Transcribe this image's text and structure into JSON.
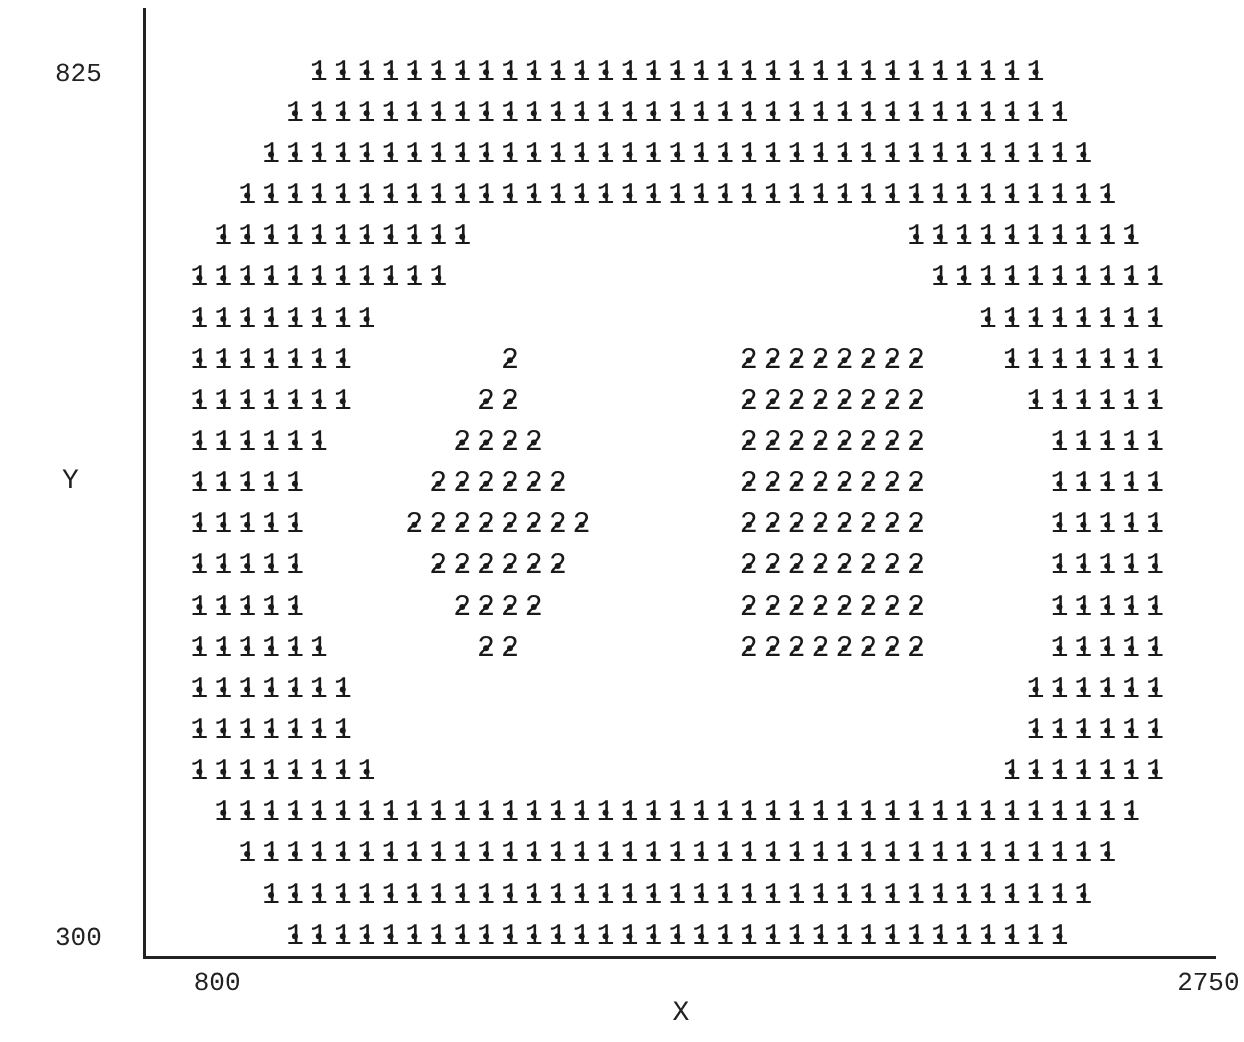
{
  "chart_data": {
    "type": "scatter",
    "xlabel": "X",
    "ylabel": "Y",
    "xlim": [
      660,
      2765
    ],
    "ylim": [
      288,
      864
    ],
    "xticks": [
      800,
      2750
    ],
    "yticks": [
      300,
      825
    ],
    "legend": false,
    "series": [
      {
        "name": "1",
        "color": "#1a1a1a",
        "x": [
          1000,
          1047,
          1094,
          1141,
          1188,
          1235,
          1282,
          1329,
          1376,
          1423,
          1470,
          1517,
          1564,
          1611,
          1658,
          1705,
          1752,
          1799,
          1846,
          1893,
          1940,
          1987,
          2034,
          2081,
          2128,
          2175,
          2222,
          2269,
          2316,
          2363,
          2410,
          953,
          1000,
          1047,
          1094,
          1141,
          1188,
          1235,
          1282,
          1329,
          1376,
          1423,
          1470,
          1517,
          1564,
          1611,
          1658,
          1705,
          1752,
          1799,
          1846,
          1893,
          1940,
          1987,
          2034,
          2081,
          2128,
          2175,
          2222,
          2269,
          2316,
          2363,
          2410,
          2457,
          906,
          953,
          1000,
          1047,
          1094,
          1141,
          1188,
          1235,
          1282,
          1329,
          1376,
          1423,
          1470,
          1517,
          1564,
          1611,
          1658,
          1705,
          1752,
          1799,
          1846,
          1893,
          1940,
          1987,
          2034,
          2081,
          2128,
          2175,
          2222,
          2269,
          2316,
          2363,
          2410,
          2457,
          2504,
          859,
          906,
          953,
          1000,
          1047,
          1094,
          1141,
          1188,
          1235,
          1282,
          1329,
          1376,
          1423,
          1470,
          1517,
          1564,
          1611,
          1658,
          1705,
          1752,
          1799,
          1846,
          1893,
          1940,
          1987,
          2034,
          2081,
          2128,
          2175,
          2222,
          2269,
          2316,
          2363,
          2410,
          2457,
          2504,
          2551,
          812,
          859,
          906,
          953,
          1000,
          1047,
          1094,
          1141,
          1188,
          1235,
          1282,
          2175,
          2222,
          2269,
          2316,
          2363,
          2410,
          2457,
          2504,
          2551,
          2598,
          765,
          812,
          859,
          906,
          953,
          1000,
          1047,
          1094,
          1141,
          1188,
          1235,
          2222,
          2269,
          2316,
          2363,
          2410,
          2457,
          2504,
          2551,
          2598,
          2645,
          765,
          812,
          859,
          906,
          953,
          1000,
          1047,
          1094,
          2316,
          2363,
          2410,
          2457,
          2504,
          2551,
          2598,
          2645,
          765,
          812,
          859,
          906,
          953,
          1000,
          1047,
          2363,
          2410,
          2457,
          2504,
          2551,
          2598,
          2645,
          765,
          812,
          859,
          906,
          953,
          1000,
          1047,
          2410,
          2457,
          2504,
          2551,
          2598,
          2645,
          765,
          812,
          859,
          906,
          953,
          1000,
          2457,
          2504,
          2551,
          2598,
          2645,
          765,
          812,
          859,
          906,
          953,
          2457,
          2504,
          2551,
          2598,
          2645,
          765,
          812,
          859,
          906,
          953,
          2457,
          2504,
          2551,
          2598,
          2645,
          765,
          812,
          859,
          906,
          953,
          2457,
          2504,
          2551,
          2598,
          2645,
          765,
          812,
          859,
          906,
          953,
          2457,
          2504,
          2551,
          2598,
          2645,
          765,
          812,
          859,
          906,
          953,
          1000,
          2457,
          2504,
          2551,
          2598,
          2645,
          765,
          812,
          859,
          906,
          953,
          1000,
          1047,
          2410,
          2457,
          2504,
          2551,
          2598,
          2645,
          765,
          812,
          859,
          906,
          953,
          1000,
          1047,
          2410,
          2457,
          2504,
          2551,
          2598,
          2645,
          765,
          812,
          859,
          906,
          953,
          1000,
          1047,
          1094,
          2363,
          2410,
          2457,
          2504,
          2551,
          2598,
          2645,
          812,
          859,
          906,
          953,
          1000,
          1047,
          1094,
          1141,
          1188,
          1235,
          1282,
          1329,
          1376,
          1423,
          1470,
          1517,
          1564,
          1611,
          1658,
          1705,
          1752,
          1799,
          1846,
          1893,
          1940,
          1987,
          2034,
          2081,
          2128,
          2175,
          2222,
          2269,
          2316,
          2363,
          2410,
          2457,
          2504,
          2551,
          2598,
          859,
          906,
          953,
          1000,
          1047,
          1094,
          1141,
          1188,
          1235,
          1282,
          1329,
          1376,
          1423,
          1470,
          1517,
          1564,
          1611,
          1658,
          1705,
          1752,
          1799,
          1846,
          1893,
          1940,
          1987,
          2034,
          2081,
          2128,
          2175,
          2222,
          2269,
          2316,
          2363,
          2410,
          2457,
          2504,
          2551,
          906,
          953,
          1000,
          1047,
          1094,
          1141,
          1188,
          1235,
          1282,
          1329,
          1376,
          1423,
          1470,
          1517,
          1564,
          1611,
          1658,
          1705,
          1752,
          1799,
          1846,
          1893,
          1940,
          1987,
          2034,
          2081,
          2128,
          2175,
          2222,
          2269,
          2316,
          2363,
          2410,
          2457,
          2504,
          953,
          1000,
          1047,
          1094,
          1141,
          1188,
          1235,
          1282,
          1329,
          1376,
          1423,
          1470,
          1517,
          1564,
          1611,
          1658,
          1705,
          1752,
          1799,
          1846,
          1893,
          1940,
          1987,
          2034,
          2081,
          2128,
          2175,
          2222,
          2269,
          2316,
          2363,
          2410,
          2457
        ],
        "values": [
          825,
          825,
          825,
          825,
          825,
          825,
          825,
          825,
          825,
          825,
          825,
          825,
          825,
          825,
          825,
          825,
          825,
          825,
          825,
          825,
          825,
          825,
          825,
          825,
          825,
          825,
          825,
          825,
          825,
          825,
          825,
          800,
          800,
          800,
          800,
          800,
          800,
          800,
          800,
          800,
          800,
          800,
          800,
          800,
          800,
          800,
          800,
          800,
          800,
          800,
          800,
          800,
          800,
          800,
          800,
          800,
          800,
          800,
          800,
          800,
          800,
          800,
          800,
          800,
          775,
          775,
          775,
          775,
          775,
          775,
          775,
          775,
          775,
          775,
          775,
          775,
          775,
          775,
          775,
          775,
          775,
          775,
          775,
          775,
          775,
          775,
          775,
          775,
          775,
          775,
          775,
          775,
          775,
          775,
          775,
          775,
          775,
          775,
          775,
          750,
          750,
          750,
          750,
          750,
          750,
          750,
          750,
          750,
          750,
          750,
          750,
          750,
          750,
          750,
          750,
          750,
          750,
          750,
          750,
          750,
          750,
          750,
          750,
          750,
          750,
          750,
          750,
          750,
          750,
          750,
          750,
          750,
          750,
          750,
          750,
          750,
          725,
          725,
          725,
          725,
          725,
          725,
          725,
          725,
          725,
          725,
          725,
          725,
          725,
          725,
          725,
          725,
          725,
          725,
          725,
          725,
          725,
          700,
          700,
          700,
          700,
          700,
          700,
          700,
          700,
          700,
          700,
          700,
          700,
          700,
          700,
          700,
          700,
          700,
          700,
          700,
          700,
          700,
          675,
          675,
          675,
          675,
          675,
          675,
          675,
          675,
          675,
          675,
          675,
          675,
          675,
          675,
          675,
          675,
          650,
          650,
          650,
          650,
          650,
          650,
          650,
          650,
          650,
          650,
          650,
          650,
          650,
          650,
          625,
          625,
          625,
          625,
          625,
          625,
          625,
          625,
          625,
          625,
          625,
          625,
          625,
          600,
          600,
          600,
          600,
          600,
          600,
          600,
          600,
          600,
          600,
          600,
          575,
          575,
          575,
          575,
          575,
          575,
          575,
          575,
          575,
          575,
          550,
          550,
          550,
          550,
          550,
          550,
          550,
          550,
          550,
          550,
          525,
          525,
          525,
          525,
          525,
          525,
          525,
          525,
          525,
          525,
          500,
          500,
          500,
          500,
          500,
          500,
          500,
          500,
          500,
          500,
          475,
          475,
          475,
          475,
          475,
          475,
          475,
          475,
          475,
          475,
          475,
          450,
          450,
          450,
          450,
          450,
          450,
          450,
          450,
          450,
          450,
          450,
          450,
          450,
          425,
          425,
          425,
          425,
          425,
          425,
          425,
          425,
          425,
          425,
          425,
          425,
          425,
          400,
          400,
          400,
          400,
          400,
          400,
          400,
          400,
          400,
          400,
          400,
          400,
          400,
          400,
          400,
          375,
          375,
          375,
          375,
          375,
          375,
          375,
          375,
          375,
          375,
          375,
          375,
          375,
          375,
          375,
          375,
          375,
          375,
          375,
          375,
          375,
          375,
          375,
          375,
          375,
          375,
          375,
          375,
          375,
          375,
          375,
          375,
          375,
          375,
          375,
          375,
          375,
          375,
          375,
          350,
          350,
          350,
          350,
          350,
          350,
          350,
          350,
          350,
          350,
          350,
          350,
          350,
          350,
          350,
          350,
          350,
          350,
          350,
          350,
          350,
          350,
          350,
          350,
          350,
          350,
          350,
          350,
          350,
          350,
          350,
          350,
          350,
          350,
          350,
          350,
          350,
          325,
          325,
          325,
          325,
          325,
          325,
          325,
          325,
          325,
          325,
          325,
          325,
          325,
          325,
          325,
          325,
          325,
          325,
          325,
          325,
          325,
          325,
          325,
          325,
          325,
          325,
          325,
          325,
          325,
          325,
          325,
          325,
          325,
          325,
          325,
          300,
          300,
          300,
          300,
          300,
          300,
          300,
          300,
          300,
          300,
          300,
          300,
          300,
          300,
          300,
          300,
          300,
          300,
          300,
          300,
          300,
          300,
          300,
          300,
          300,
          300,
          300,
          300,
          300,
          300,
          300,
          300,
          300
        ]
      },
      {
        "name": "2",
        "color": "#1a1a1a",
        "x": [
          1376,
          1846,
          1893,
          1940,
          1987,
          2034,
          2081,
          2128,
          2175,
          1329,
          1376,
          1846,
          1893,
          1940,
          1987,
          2034,
          2081,
          2128,
          2175,
          1282,
          1329,
          1376,
          1423,
          1846,
          1893,
          1940,
          1987,
          2034,
          2081,
          2128,
          2175,
          1235,
          1282,
          1329,
          1376,
          1423,
          1470,
          1846,
          1893,
          1940,
          1987,
          2034,
          2081,
          2128,
          2175,
          1188,
          1235,
          1282,
          1329,
          1376,
          1423,
          1470,
          1517,
          1846,
          1893,
          1940,
          1987,
          2034,
          2081,
          2128,
          2175,
          1235,
          1282,
          1329,
          1376,
          1423,
          1470,
          1846,
          1893,
          1940,
          1987,
          2034,
          2081,
          2128,
          2175,
          1282,
          1329,
          1376,
          1423,
          1846,
          1893,
          1940,
          1987,
          2034,
          2081,
          2128,
          2175,
          1329,
          1376,
          1846,
          1893,
          1940,
          1987,
          2034,
          2081,
          2128,
          2175
        ],
        "values": [
          650,
          650,
          650,
          650,
          650,
          650,
          650,
          650,
          650,
          625,
          625,
          625,
          625,
          625,
          625,
          625,
          625,
          625,
          625,
          600,
          600,
          600,
          600,
          600,
          600,
          600,
          600,
          600,
          600,
          600,
          600,
          575,
          575,
          575,
          575,
          575,
          575,
          575,
          575,
          575,
          575,
          575,
          575,
          575,
          575,
          550,
          550,
          550,
          550,
          550,
          550,
          550,
          550,
          550,
          550,
          550,
          550,
          550,
          550,
          550,
          550,
          525,
          525,
          525,
          525,
          525,
          525,
          525,
          525,
          525,
          525,
          525,
          525,
          525,
          525,
          500,
          500,
          500,
          500,
          500,
          500,
          500,
          500,
          500,
          500,
          500,
          500,
          475,
          475,
          475,
          475,
          475,
          475,
          475,
          475,
          475,
          475
        ]
      }
    ]
  }
}
